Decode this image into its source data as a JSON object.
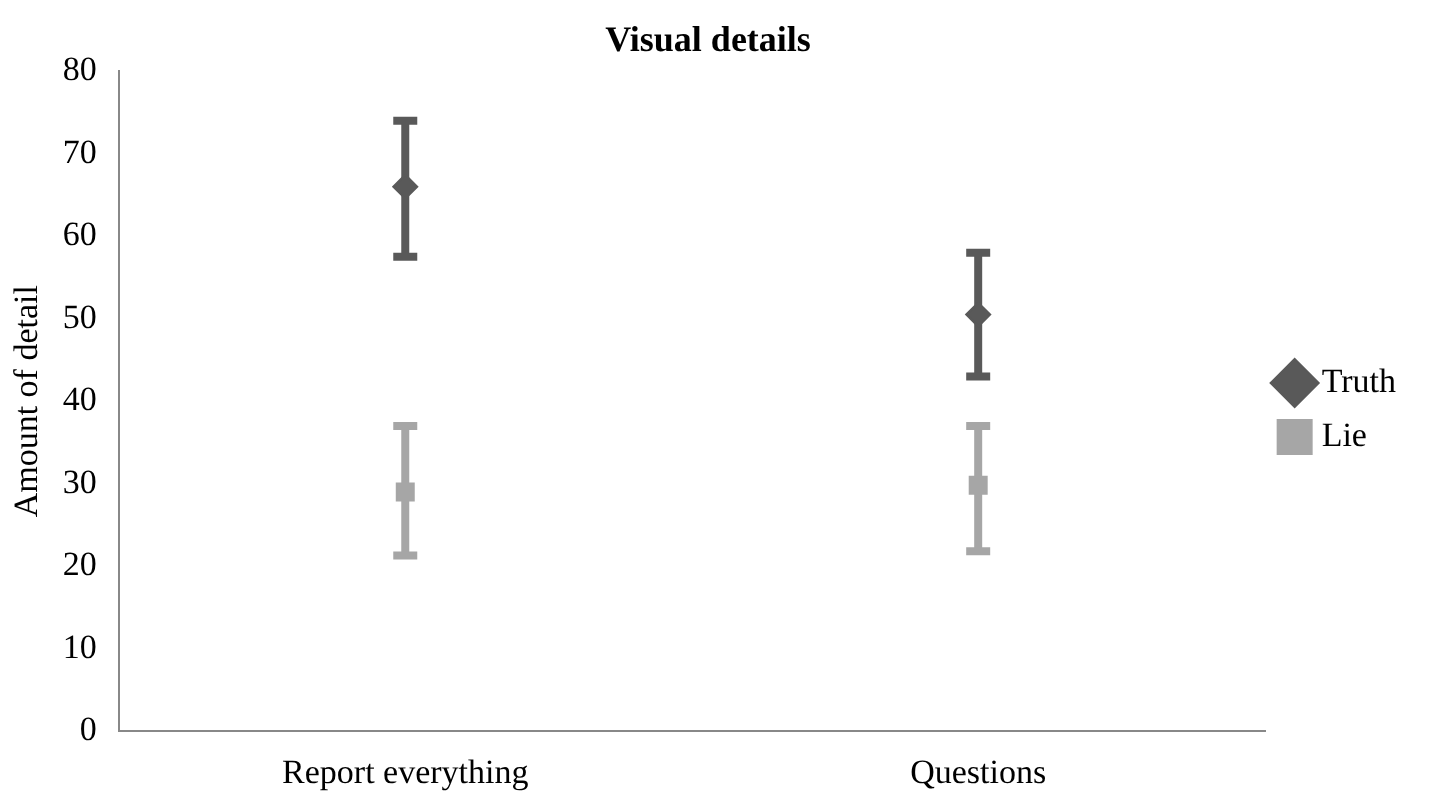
{
  "chart_data": {
    "type": "scatter",
    "title": "Visual details",
    "ylabel": "Amount of detail",
    "categories": [
      "Report everything",
      "Questions"
    ],
    "series": [
      {
        "name": "Truth",
        "color": "#595959",
        "marker": "diamond",
        "values": [
          66,
          50.5
        ],
        "errors": [
          [
            57.5,
            74
          ],
          [
            43,
            58
          ]
        ]
      },
      {
        "name": "Lie",
        "color": "#a6a6a6",
        "marker": "square",
        "values": [
          29,
          29.8
        ],
        "errors": [
          [
            21.3,
            37
          ],
          [
            21.8,
            37
          ]
        ]
      }
    ],
    "ylim": [
      0,
      80
    ],
    "yticks": [
      0,
      10,
      20,
      30,
      40,
      50,
      60,
      70,
      80
    ],
    "grid": false,
    "legend": "right"
  }
}
